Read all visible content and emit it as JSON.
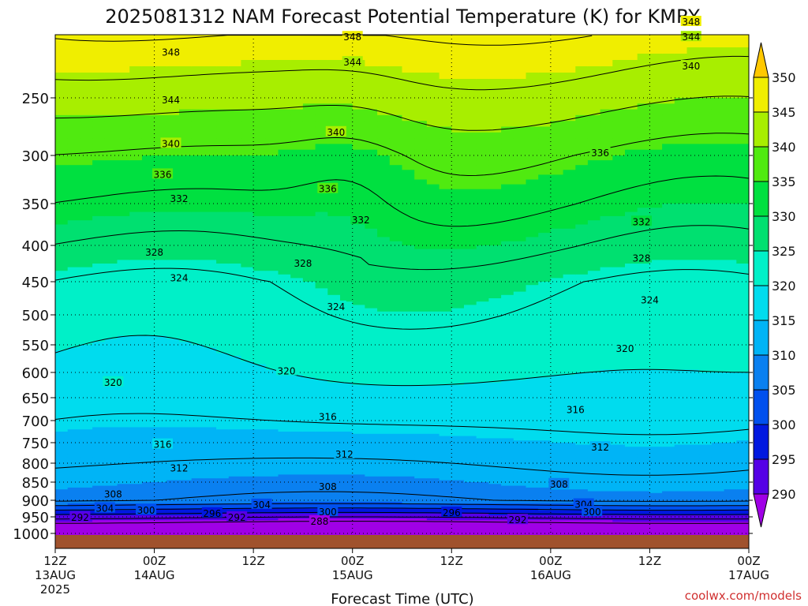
{
  "title": "2025081312 NAM Forecast Potential Temperature (K) for KMRY",
  "credit": "coolwx.com/models",
  "credit_color": "#d03030",
  "terrain_color": "#a0522d",
  "chart_data": {
    "type": "heatmap",
    "title": "2025081312 NAM Forecast Potential Temperature (K) for KMRY",
    "xlabel": "Forecast Time (UTC)",
    "ylabel": "",
    "x_ticks": [
      {
        "hours": 0,
        "line1": "12Z",
        "line2": "13AUG",
        "line3": "2025"
      },
      {
        "hours": 12,
        "line1": "00Z",
        "line2": "14AUG",
        "line3": ""
      },
      {
        "hours": 24,
        "line1": "12Z",
        "line2": "",
        "line3": ""
      },
      {
        "hours": 36,
        "line1": "00Z",
        "line2": "15AUG",
        "line3": ""
      },
      {
        "hours": 48,
        "line1": "12Z",
        "line2": "",
        "line3": ""
      },
      {
        "hours": 60,
        "line1": "00Z",
        "line2": "16AUG",
        "line3": ""
      },
      {
        "hours": 72,
        "line1": "12Z",
        "line2": "",
        "line3": ""
      },
      {
        "hours": 84,
        "line1": "00Z",
        "line2": "17AUG",
        "line3": ""
      }
    ],
    "y_ticks": [
      250,
      300,
      350,
      400,
      450,
      500,
      550,
      600,
      650,
      700,
      750,
      800,
      850,
      900,
      950,
      1000
    ],
    "y_range_hpa": [
      200,
      1010
    ],
    "colorbar_levels": [
      290,
      295,
      300,
      305,
      310,
      315,
      320,
      325,
      330,
      335,
      340,
      345,
      350
    ],
    "colorbar_colors": [
      "#a000e6",
      "#5500e6",
      "#0018e0",
      "#0050ee",
      "#0a80f0",
      "#00b4f6",
      "#00dcee",
      "#00f0c8",
      "#00e070",
      "#00e040",
      "#50ea10",
      "#a8ee00",
      "#f0ee00",
      "#ffc800"
    ],
    "contour_labels": [
      {
        "value": 348,
        "hours": 14,
        "hpa": 214
      },
      {
        "value": 348,
        "hours": 36,
        "hpa": 202
      },
      {
        "value": 348,
        "hours": 77,
        "hpa": 190
      },
      {
        "value": 344,
        "hours": 14,
        "hpa": 252
      },
      {
        "value": 344,
        "hours": 36,
        "hpa": 222
      },
      {
        "value": 344,
        "hours": 77,
        "hpa": 202
      },
      {
        "value": 340,
        "hours": 14,
        "hpa": 290
      },
      {
        "value": 340,
        "hours": 34,
        "hpa": 280
      },
      {
        "value": 340,
        "hours": 77,
        "hpa": 225
      },
      {
        "value": 336,
        "hours": 13,
        "hpa": 320
      },
      {
        "value": 336,
        "hours": 33,
        "hpa": 335
      },
      {
        "value": 336,
        "hours": 66,
        "hpa": 298
      },
      {
        "value": 332,
        "hours": 15,
        "hpa": 345
      },
      {
        "value": 332,
        "hours": 37,
        "hpa": 370
      },
      {
        "value": 332,
        "hours": 71,
        "hpa": 372
      },
      {
        "value": 328,
        "hours": 12,
        "hpa": 410
      },
      {
        "value": 328,
        "hours": 30,
        "hpa": 425
      },
      {
        "value": 328,
        "hours": 71,
        "hpa": 418
      },
      {
        "value": 324,
        "hours": 15,
        "hpa": 445
      },
      {
        "value": 324,
        "hours": 34,
        "hpa": 488
      },
      {
        "value": 324,
        "hours": 72,
        "hpa": 478
      },
      {
        "value": 320,
        "hours": 7,
        "hpa": 620
      },
      {
        "value": 320,
        "hours": 28,
        "hpa": 598
      },
      {
        "value": 320,
        "hours": 69,
        "hpa": 557
      },
      {
        "value": 316,
        "hours": 13,
        "hpa": 755
      },
      {
        "value": 316,
        "hours": 33,
        "hpa": 692
      },
      {
        "value": 316,
        "hours": 63,
        "hpa": 677
      },
      {
        "value": 312,
        "hours": 15,
        "hpa": 814
      },
      {
        "value": 312,
        "hours": 35,
        "hpa": 779
      },
      {
        "value": 312,
        "hours": 66,
        "hpa": 762
      },
      {
        "value": 308,
        "hours": 7,
        "hpa": 884
      },
      {
        "value": 308,
        "hours": 33,
        "hpa": 863
      },
      {
        "value": 308,
        "hours": 61,
        "hpa": 856
      },
      {
        "value": 304,
        "hours": 6,
        "hpa": 925
      },
      {
        "value": 304,
        "hours": 25,
        "hpa": 914
      },
      {
        "value": 304,
        "hours": 64,
        "hpa": 913
      },
      {
        "value": 300,
        "hours": 11,
        "hpa": 931
      },
      {
        "value": 300,
        "hours": 33,
        "hpa": 936
      },
      {
        "value": 300,
        "hours": 65,
        "hpa": 936
      },
      {
        "value": 296,
        "hours": 19,
        "hpa": 940
      },
      {
        "value": 296,
        "hours": 48,
        "hpa": 938
      },
      {
        "value": 292,
        "hours": 3,
        "hpa": 952
      },
      {
        "value": 292,
        "hours": 22,
        "hpa": 952
      },
      {
        "value": 292,
        "hours": 56,
        "hpa": 960
      },
      {
        "value": 288,
        "hours": 32,
        "hpa": 964
      }
    ]
  }
}
